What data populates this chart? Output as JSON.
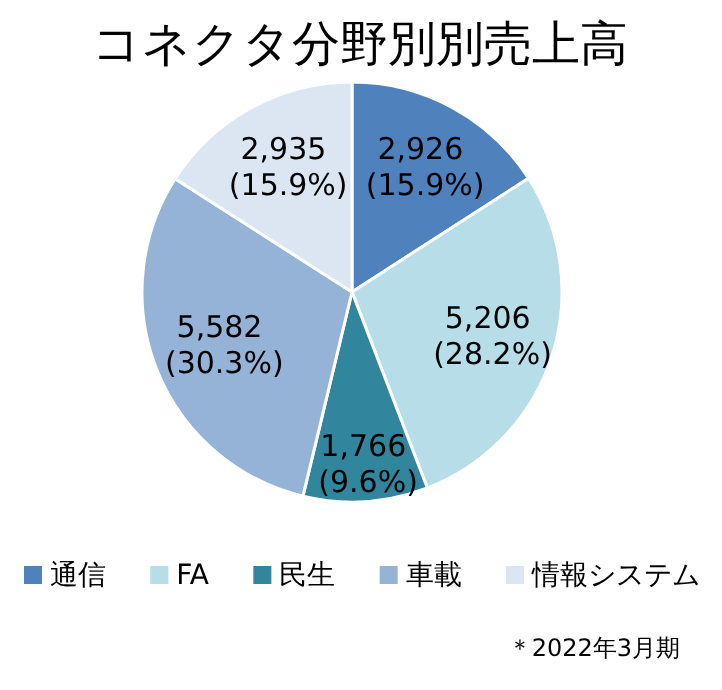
{
  "chart_data": {
    "type": "pie",
    "title": "コネクタ分野別別売上高",
    "categories": [
      "通信",
      "FA",
      "民生",
      "車載",
      "情報システム"
    ],
    "values": [
      2926,
      5206,
      1766,
      5582,
      2935
    ],
    "colors": [
      "#4f81bd",
      "#b7dee8",
      "#31859c",
      "#95b3d7",
      "#dce6f2"
    ],
    "value_labels": [
      "2,926 (15.9%)",
      "5,206 (28.2%)",
      "1,766 (9.6%)",
      "5,582 (30.3%)",
      "2,935 (15.9%)"
    ],
    "legend": "bottom",
    "annotations": [
      "＊2022年3月期"
    ]
  }
}
